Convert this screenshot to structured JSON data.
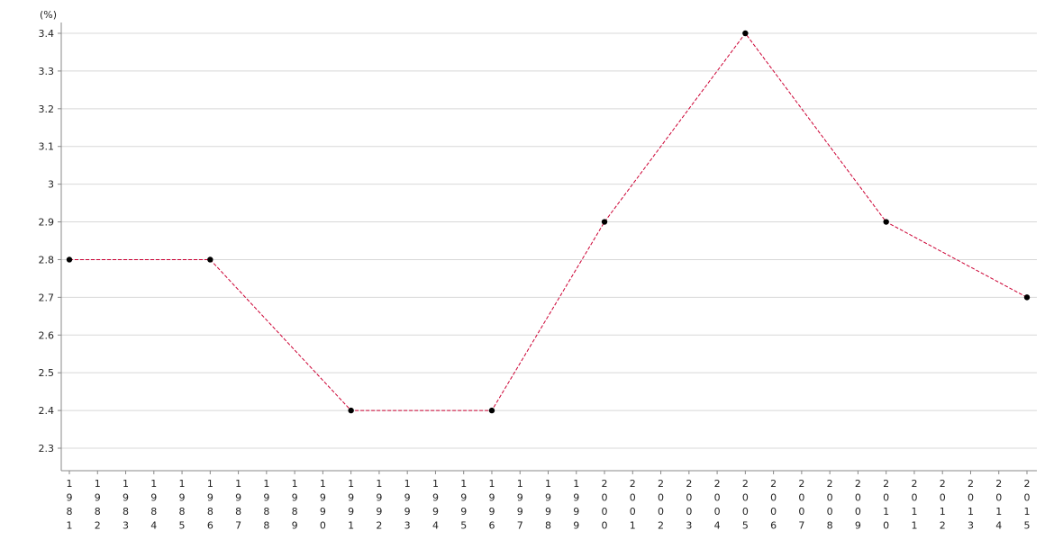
{
  "chart_data": {
    "type": "line",
    "ylabel": "(%)",
    "ylim": [
      2.25,
      3.45
    ],
    "yticks": [
      2.3,
      2.4,
      2.5,
      2.6,
      2.7,
      2.8,
      2.9,
      3,
      3.1,
      3.2,
      3.3,
      3.4
    ],
    "ytick_labels": [
      "2.3",
      "2.4",
      "2.5",
      "2.6",
      "2.7",
      "2.8",
      "2.9",
      "3",
      "3.1",
      "3.2",
      "3.3",
      "3.4"
    ],
    "categories": [
      "1981",
      "1982",
      "1983",
      "1984",
      "1985",
      "1986",
      "1987",
      "1988",
      "1989",
      "1990",
      "1991",
      "1992",
      "1993",
      "1994",
      "1995",
      "1996",
      "1997",
      "1998",
      "1999",
      "2000",
      "2001",
      "2002",
      "2003",
      "2004",
      "2005",
      "2006",
      "2007",
      "2008",
      "2009",
      "2010",
      "2011",
      "2012",
      "2013",
      "2014",
      "2015"
    ],
    "series": [
      {
        "color": "#cc0033",
        "points": [
          {
            "x": "1981",
            "y": 2.8
          },
          {
            "x": "1986",
            "y": 2.8
          },
          {
            "x": "1991",
            "y": 2.4
          },
          {
            "x": "1996",
            "y": 2.4
          },
          {
            "x": "2000",
            "y": 2.9
          },
          {
            "x": "2005",
            "y": 3.4
          },
          {
            "x": "2010",
            "y": 2.9
          },
          {
            "x": "2015",
            "y": 2.7
          }
        ]
      }
    ],
    "grid": true,
    "marker_color": "#000000"
  }
}
